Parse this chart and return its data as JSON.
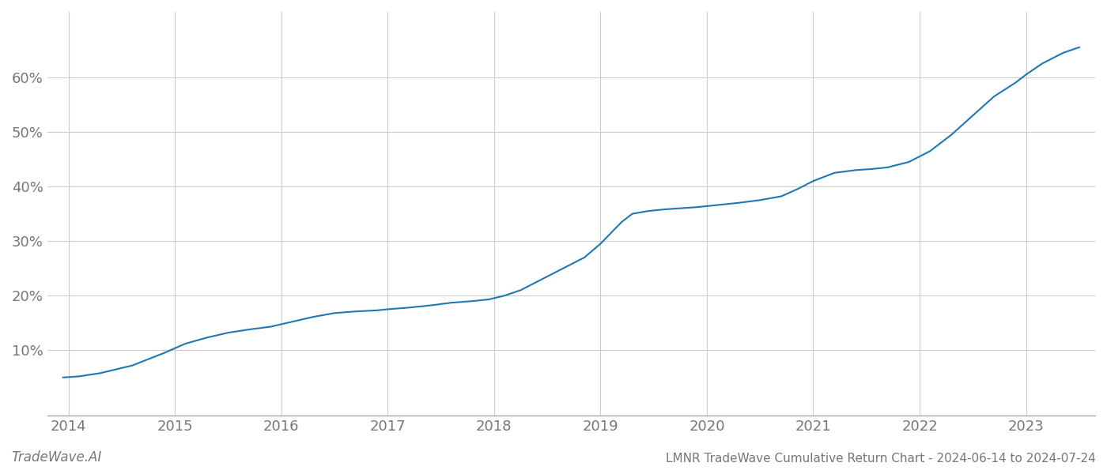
{
  "x_years": [
    2013.95,
    2014.1,
    2014.3,
    2014.6,
    2014.9,
    2015.1,
    2015.3,
    2015.5,
    2015.7,
    2015.9,
    2016.1,
    2016.3,
    2016.5,
    2016.7,
    2016.9,
    2017.0,
    2017.2,
    2017.4,
    2017.6,
    2017.8,
    2017.95,
    2018.1,
    2018.25,
    2018.4,
    2018.55,
    2018.7,
    2018.85,
    2019.0,
    2019.1,
    2019.2,
    2019.3,
    2019.45,
    2019.6,
    2019.75,
    2019.9,
    2020.1,
    2020.3,
    2020.5,
    2020.7,
    2020.85,
    2021.0,
    2021.2,
    2021.4,
    2021.55,
    2021.7,
    2021.9,
    2022.1,
    2022.3,
    2022.5,
    2022.7,
    2022.9,
    2023.0,
    2023.15,
    2023.35,
    2023.5
  ],
  "y_values": [
    5.0,
    5.2,
    5.8,
    7.2,
    9.5,
    11.2,
    12.3,
    13.2,
    13.8,
    14.3,
    15.2,
    16.1,
    16.8,
    17.1,
    17.3,
    17.5,
    17.8,
    18.2,
    18.7,
    19.0,
    19.3,
    20.0,
    21.0,
    22.5,
    24.0,
    25.5,
    27.0,
    29.5,
    31.5,
    33.5,
    35.0,
    35.5,
    35.8,
    36.0,
    36.2,
    36.6,
    37.0,
    37.5,
    38.2,
    39.5,
    41.0,
    42.5,
    43.0,
    43.2,
    43.5,
    44.5,
    46.5,
    49.5,
    53.0,
    56.5,
    59.0,
    60.5,
    62.5,
    64.5,
    65.5
  ],
  "line_color": "#1f77b4",
  "line_width": 1.5,
  "background_color": "#ffffff",
  "grid_color": "#cccccc",
  "title": "LMNR TradeWave Cumulative Return Chart - 2024-06-14 to 2024-07-24",
  "watermark": "TradeWave.AI",
  "x_ticks": [
    2014,
    2015,
    2016,
    2017,
    2018,
    2019,
    2020,
    2021,
    2022,
    2023
  ],
  "y_ticks": [
    10,
    20,
    30,
    40,
    50,
    60
  ],
  "xlim": [
    2013.8,
    2023.65
  ],
  "ylim": [
    -2,
    72
  ],
  "tick_fontsize": 13,
  "title_fontsize": 11,
  "watermark_fontsize": 12
}
